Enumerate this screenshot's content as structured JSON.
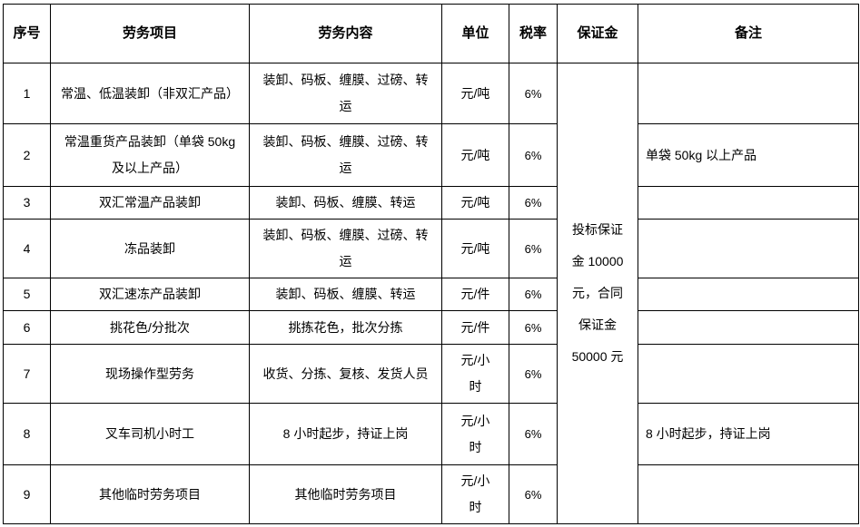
{
  "page": {
    "background": "#ffffff",
    "border_color": "#000000",
    "text_color": "#000000"
  },
  "table": {
    "columns": [
      "序号",
      "劳务项目",
      "劳务内容",
      "单位",
      "税率",
      "保证金",
      "备注"
    ],
    "deposit_note": "投标保证金 10000 元，合同保证金 50000 元",
    "rows": [
      {
        "no": "1",
        "project": "常温、低温装卸（非双汇产品）",
        "content": "装卸、码板、缠膜、过磅、转运",
        "unit": "元/吨",
        "tax_rate": "6%",
        "remark": ""
      },
      {
        "no": "2",
        "project": "常温重货产品装卸（单袋 50kg 及以上产品）",
        "content": "装卸、码板、缠膜、过磅、转运",
        "unit": "元/吨",
        "tax_rate": "6%",
        "remark": "单袋 50kg 以上产品"
      },
      {
        "no": "3",
        "project": "双汇常温产品装卸",
        "content": "装卸、码板、缠膜、转运",
        "unit": "元/吨",
        "tax_rate": "6%",
        "remark": ""
      },
      {
        "no": "4",
        "project": "冻品装卸",
        "content": "装卸、码板、缠膜、过磅、转运",
        "unit": "元/吨",
        "tax_rate": "6%",
        "remark": ""
      },
      {
        "no": "5",
        "project": "双汇速冻产品装卸",
        "content": "装卸、码板、缠膜、转运",
        "unit": "元/件",
        "tax_rate": "6%",
        "remark": ""
      },
      {
        "no": "6",
        "project": "挑花色/分批次",
        "content": "挑拣花色，批次分拣",
        "unit": "元/件",
        "tax_rate": "6%",
        "remark": ""
      },
      {
        "no": "7",
        "project": "现场操作型劳务",
        "content": "收货、分拣、复核、发货人员",
        "unit": "元/小时",
        "tax_rate": "6%",
        "remark": ""
      },
      {
        "no": "8",
        "project": "叉车司机小时工",
        "content": "8 小时起步，持证上岗",
        "unit": "元/小时",
        "tax_rate": "6%",
        "remark": "8 小时起步，持证上岗"
      },
      {
        "no": "9",
        "project": "其他临时劳务项目",
        "content": "其他临时劳务项目",
        "unit": "元/小时",
        "tax_rate": "6%",
        "remark": ""
      }
    ]
  }
}
